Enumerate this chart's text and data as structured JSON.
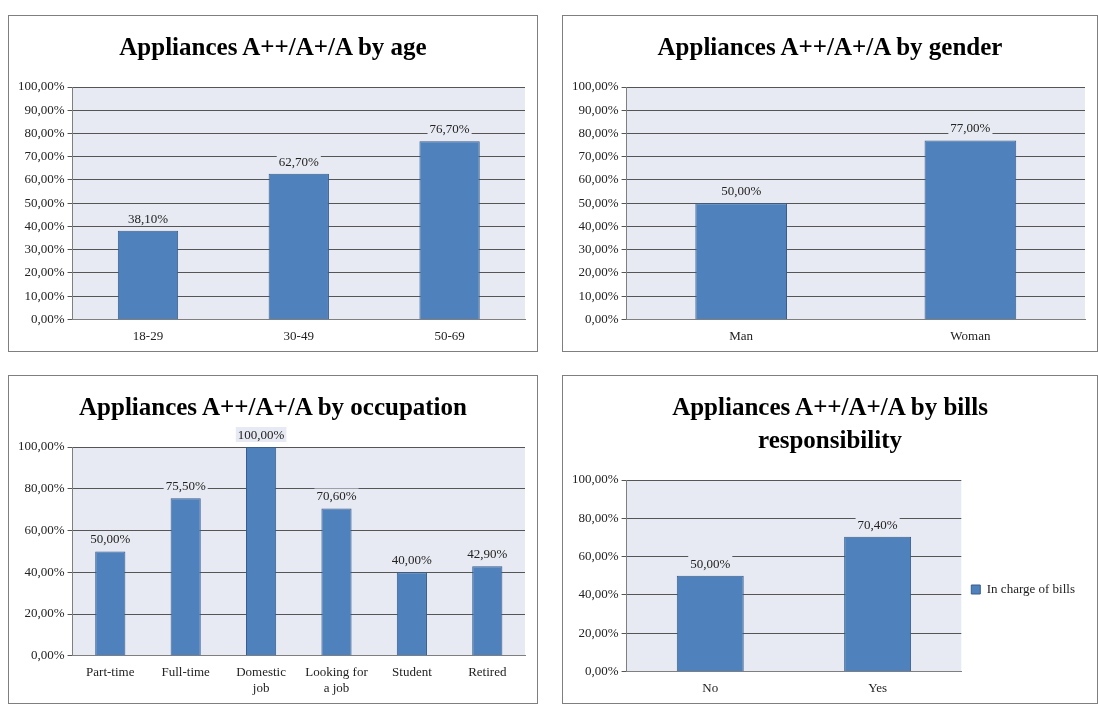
{
  "chart_data": [
    {
      "type": "bar",
      "title": "Appliances A++/A+/A by age",
      "categories": [
        "18-29",
        "30-49",
        "50-69"
      ],
      "series": [
        {
          "color": "#4f81bd",
          "values": [
            38.1,
            62.7,
            76.7
          ],
          "value_labels": [
            "38,10%",
            "62,70%",
            "76,70%"
          ]
        }
      ],
      "ylim": [
        0,
        100
      ],
      "yticks": [
        {
          "value": 0,
          "label": "0,00%"
        },
        {
          "value": 10,
          "label": "10,00%"
        },
        {
          "value": 20,
          "label": "20,00%"
        },
        {
          "value": 30,
          "label": "30,00%"
        },
        {
          "value": 40,
          "label": "40,00%"
        },
        {
          "value": 50,
          "label": "50,00%"
        },
        {
          "value": 60,
          "label": "60,00%"
        },
        {
          "value": 70,
          "label": "70,00%"
        },
        {
          "value": 80,
          "label": "80,00%"
        },
        {
          "value": 90,
          "label": "90,00%"
        },
        {
          "value": 100,
          "label": "100,00%"
        }
      ],
      "grid": "y",
      "legend": false
    },
    {
      "type": "bar",
      "title": "Appliances A++/A+/A by gender",
      "categories": [
        "Man",
        "Woman"
      ],
      "series": [
        {
          "color": "#4f81bd",
          "values": [
            50,
            77
          ],
          "value_labels": [
            "50,00%",
            "77,00%"
          ]
        }
      ],
      "ylim": [
        0,
        100
      ],
      "yticks": [
        {
          "value": 0,
          "label": "0,00%"
        },
        {
          "value": 10,
          "label": "10,00%"
        },
        {
          "value": 20,
          "label": "20,00%"
        },
        {
          "value": 30,
          "label": "30,00%"
        },
        {
          "value": 40,
          "label": "40,00%"
        },
        {
          "value": 50,
          "label": "50,00%"
        },
        {
          "value": 60,
          "label": "60,00%"
        },
        {
          "value": 70,
          "label": "70,00%"
        },
        {
          "value": 80,
          "label": "80,00%"
        },
        {
          "value": 90,
          "label": "90,00%"
        },
        {
          "value": 100,
          "label": "100,00%"
        }
      ],
      "grid": "y",
      "legend": false
    },
    {
      "type": "bar",
      "title": "Appliances A++/A+/A by occupation",
      "categories": [
        "Part-time",
        "Full-time",
        "Domestic job",
        "Looking for a job",
        "Student",
        "Retired"
      ],
      "series": [
        {
          "color": "#4f81bd",
          "values": [
            50,
            75.5,
            100,
            70.6,
            40,
            42.9
          ],
          "value_labels": [
            "50,00%",
            "75,50%",
            "100,00%",
            "70,60%",
            "40,00%",
            "42,90%"
          ]
        }
      ],
      "ylim": [
        0,
        100
      ],
      "yticks": [
        {
          "value": 0,
          "label": "0,00%"
        },
        {
          "value": 20,
          "label": "20,00%"
        },
        {
          "value": 40,
          "label": "40,00%"
        },
        {
          "value": 60,
          "label": "60,00%"
        },
        {
          "value": 80,
          "label": "80,00%"
        },
        {
          "value": 100,
          "label": "100,00%"
        }
      ],
      "grid": "y",
      "legend": false
    },
    {
      "type": "bar",
      "title": "Appliances A++/A+/A by bills responsibility",
      "categories": [
        "No",
        "Yes"
      ],
      "series": [
        {
          "name": "In charge of bills",
          "color": "#4f81bd",
          "values": [
            50,
            70.4
          ],
          "value_labels": [
            "50,00%",
            "70,40%"
          ]
        }
      ],
      "ylim": [
        0,
        100
      ],
      "yticks": [
        {
          "value": 0,
          "label": "0,00%"
        },
        {
          "value": 20,
          "label": "20,00%"
        },
        {
          "value": 40,
          "label": "40,00%"
        },
        {
          "value": 60,
          "label": "60,00%"
        },
        {
          "value": 80,
          "label": "80,00%"
        },
        {
          "value": 100,
          "label": "100,00%"
        }
      ],
      "grid": "y",
      "legend": "right"
    }
  ]
}
